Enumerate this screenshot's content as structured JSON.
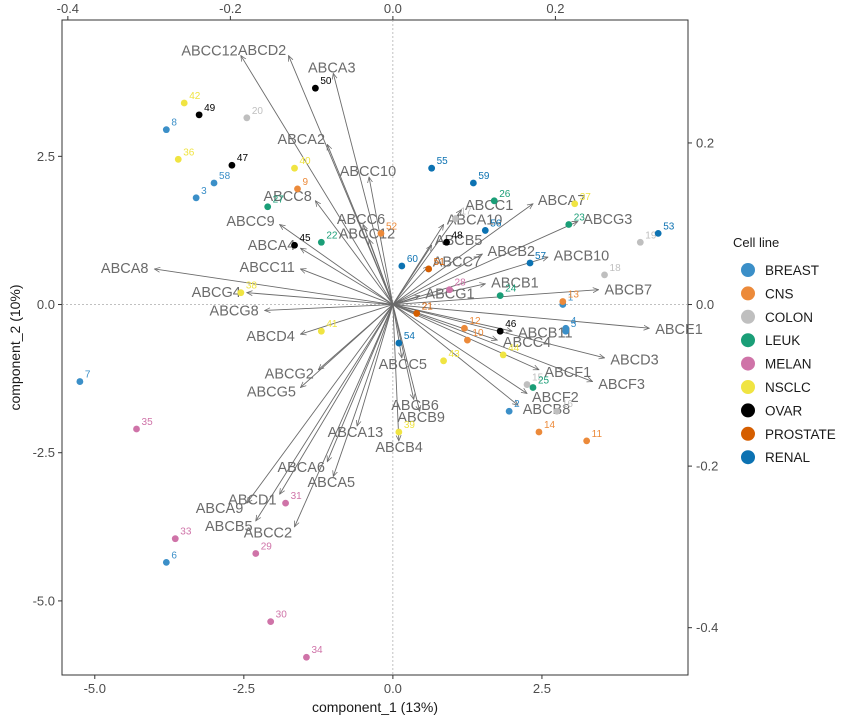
{
  "chart_data": {
    "type": "scatter",
    "subtype": "pca-biplot",
    "xlabel": "component_1   (13%)",
    "ylabel": "component_2   (10%)",
    "xlim": [
      -5.55,
      4.95
    ],
    "ylim": [
      -6.25,
      4.8
    ],
    "xticks": [
      -5.0,
      -2.5,
      0.0,
      2.5
    ],
    "xtick_labels": [
      "-5.0",
      "-2.5",
      "0.0",
      "2.5"
    ],
    "yticks": [
      -5.0,
      -2.5,
      0.0,
      2.5
    ],
    "ytick_labels": [
      "-5.0",
      "-2.5",
      "0.0",
      "2.5"
    ],
    "secondary_xticks": [
      -0.4,
      -0.2,
      0.0,
      0.2
    ],
    "secondary_xtick_labels": [
      "-0.4",
      "-0.2",
      "0.0",
      "0.2"
    ],
    "secondary_yticks": [
      -0.4,
      -0.2,
      0.0,
      0.2
    ],
    "secondary_ytick_labels": [
      "-0.4",
      "-0.2",
      "0.0",
      "0.2"
    ],
    "secondary_scale": 0.07337,
    "grid": false,
    "legend": {
      "title": "Cell line",
      "position": "right",
      "entries": [
        {
          "name": "BREAST",
          "color": "#3b8fc8"
        },
        {
          "name": "CNS",
          "color": "#ec8a3a"
        },
        {
          "name": "COLON",
          "color": "#bfbfbf"
        },
        {
          "name": "LEUK",
          "color": "#1a9e77"
        },
        {
          "name": "MELAN",
          "color": "#cf73a8"
        },
        {
          "name": "NSCLC",
          "color": "#f0e442"
        },
        {
          "name": "OVAR",
          "color": "#000000"
        },
        {
          "name": "PROSTATE",
          "color": "#d55e00"
        },
        {
          "name": "RENAL",
          "color": "#0c72b2"
        }
      ]
    },
    "arrow_color": "#6b6b6b",
    "loadings": [
      {
        "name": "ABCC12",
        "x": -2.55,
        "y": 4.2
      },
      {
        "name": "ABCD2",
        "x": -1.75,
        "y": 4.2
      },
      {
        "name": "ABCA3",
        "x": -1.0,
        "y": 3.9
      },
      {
        "name": "ABCA2",
        "x": -1.1,
        "y": 2.7
      },
      {
        "name": "ABCC10",
        "x": -0.4,
        "y": 2.15
      },
      {
        "name": "ABCC8",
        "x": -1.3,
        "y": 1.75
      },
      {
        "name": "ABCC9",
        "x": -1.9,
        "y": 1.35
      },
      {
        "name": "ABCC6",
        "x": -0.5,
        "y": 1.35
      },
      {
        "name": "ABCA4",
        "x": -1.55,
        "y": 0.95
      },
      {
        "name": "ABCC12",
        "x": -0.4,
        "y": 1.1
      },
      {
        "name": "ABCC11",
        "x": -1.55,
        "y": 0.6
      },
      {
        "name": "ABCA8",
        "x": -4.0,
        "y": 0.6
      },
      {
        "name": "ABCG4",
        "x": -2.45,
        "y": 0.2
      },
      {
        "name": "ABCG8",
        "x": -2.15,
        "y": -0.1
      },
      {
        "name": "ABCD4",
        "x": -1.55,
        "y": -0.5
      },
      {
        "name": "ABCC1",
        "x": 1.15,
        "y": 1.6
      },
      {
        "name": "ABCA7",
        "x": 2.35,
        "y": 1.7
      },
      {
        "name": "ABCA10",
        "x": 0.85,
        "y": 1.35
      },
      {
        "name": "ABCG3",
        "x": 3.1,
        "y": 1.4
      },
      {
        "name": "ABCB5",
        "x": 0.65,
        "y": 1.0
      },
      {
        "name": "ABCB2",
        "x": 1.5,
        "y": 0.85
      },
      {
        "name": "ABCC7",
        "x": 0.6,
        "y": 0.65
      },
      {
        "name": "ABCB10",
        "x": 2.6,
        "y": 0.8
      },
      {
        "name": "ABCB1",
        "x": 1.55,
        "y": 0.35
      },
      {
        "name": "ABCB7",
        "x": 3.45,
        "y": 0.25
      },
      {
        "name": "ABCG1",
        "x": 0.45,
        "y": 0.15
      },
      {
        "name": "ABCE1",
        "x": 4.3,
        "y": -0.4
      },
      {
        "name": "ABCB11",
        "x": 2.0,
        "y": -0.45
      },
      {
        "name": "ABCC4",
        "x": 1.75,
        "y": -0.6
      },
      {
        "name": "ABCD3",
        "x": 3.55,
        "y": -0.9
      },
      {
        "name": "ABCF1",
        "x": 2.45,
        "y": -1.1
      },
      {
        "name": "ABCF3",
        "x": 3.35,
        "y": -1.3
      },
      {
        "name": "ABCF2",
        "x": 2.25,
        "y": -1.5
      },
      {
        "name": "ABCB8",
        "x": 2.1,
        "y": -1.7
      },
      {
        "name": "ABCC5",
        "x": 0.15,
        "y": -0.9
      },
      {
        "name": "ABCG2",
        "x": -1.25,
        "y": -1.1
      },
      {
        "name": "ABCG5",
        "x": -1.55,
        "y": -1.4
      },
      {
        "name": "ABCB6",
        "x": 0.35,
        "y": -1.6
      },
      {
        "name": "ABCB9",
        "x": 0.45,
        "y": -1.8
      },
      {
        "name": "ABCA13",
        "x": -0.6,
        "y": -2.05
      },
      {
        "name": "ABCB4",
        "x": 0.1,
        "y": -2.3
      },
      {
        "name": "ABCA6",
        "x": -1.1,
        "y": -2.65
      },
      {
        "name": "ABCA5",
        "x": -1.0,
        "y": -2.9
      },
      {
        "name": "ABCA9",
        "x": -2.45,
        "y": -3.35
      },
      {
        "name": "ABCD1",
        "x": -1.9,
        "y": -3.2
      },
      {
        "name": "ABCB5",
        "x": -2.3,
        "y": -3.65
      },
      {
        "name": "ABCC2",
        "x": -1.65,
        "y": -3.75
      }
    ],
    "points": [
      {
        "label": "1",
        "group": "BREAST",
        "x": 2.85,
        "y": 0.0
      },
      {
        "label": "2",
        "group": "BREAST",
        "x": 1.95,
        "y": -1.8
      },
      {
        "label": "3",
        "group": "BREAST",
        "x": -3.3,
        "y": 1.8
      },
      {
        "label": "4",
        "group": "BREAST",
        "x": 2.9,
        "y": -0.4
      },
      {
        "label": "5",
        "group": "BREAST",
        "x": 2.9,
        "y": -0.45
      },
      {
        "label": "6",
        "group": "BREAST",
        "x": -3.8,
        "y": -4.35
      },
      {
        "label": "7",
        "group": "BREAST",
        "x": -5.25,
        "y": -1.3
      },
      {
        "label": "8",
        "group": "BREAST",
        "x": -3.8,
        "y": 2.95
      },
      {
        "label": "58",
        "group": "BREAST",
        "x": -3.0,
        "y": 2.05
      },
      {
        "label": "9",
        "group": "CNS",
        "x": -1.6,
        "y": 1.95
      },
      {
        "label": "10",
        "group": "CNS",
        "x": 1.25,
        "y": -0.6
      },
      {
        "label": "11",
        "group": "CNS",
        "x": 3.25,
        "y": -2.3
      },
      {
        "label": "12",
        "group": "CNS",
        "x": 1.2,
        "y": -0.4
      },
      {
        "label": "13",
        "group": "CNS",
        "x": 2.85,
        "y": 0.05
      },
      {
        "label": "14",
        "group": "CNS",
        "x": 2.45,
        "y": -2.15
      },
      {
        "label": "52",
        "group": "CNS",
        "x": -0.2,
        "y": 1.2
      },
      {
        "label": "15",
        "group": "COLON",
        "x": 2.25,
        "y": -1.35
      },
      {
        "label": "16",
        "group": "COLON",
        "x": 2.75,
        "y": -1.8
      },
      {
        "label": "17",
        "group": "COLON",
        "x": 1.05,
        "y": 1.45
      },
      {
        "label": "18",
        "group": "COLON",
        "x": 3.55,
        "y": 0.5
      },
      {
        "label": "19",
        "group": "COLON",
        "x": 4.15,
        "y": 1.05
      },
      {
        "label": "20",
        "group": "COLON",
        "x": -2.45,
        "y": 3.15
      },
      {
        "label": "22",
        "group": "LEUK",
        "x": -1.2,
        "y": 1.05
      },
      {
        "label": "23",
        "group": "LEUK",
        "x": 2.95,
        "y": 1.35
      },
      {
        "label": "24",
        "group": "LEUK",
        "x": 1.8,
        "y": 0.15
      },
      {
        "label": "25",
        "group": "LEUK",
        "x": 2.35,
        "y": -1.4
      },
      {
        "label": "26",
        "group": "LEUK",
        "x": 1.7,
        "y": 1.75
      },
      {
        "label": "27",
        "group": "LEUK",
        "x": -2.1,
        "y": 1.65
      },
      {
        "label": "28",
        "group": "MELAN",
        "x": 0.95,
        "y": 0.25
      },
      {
        "label": "29",
        "group": "MELAN",
        "x": -2.3,
        "y": -4.2
      },
      {
        "label": "30",
        "group": "MELAN",
        "x": -2.05,
        "y": -5.35
      },
      {
        "label": "31",
        "group": "MELAN",
        "x": -1.8,
        "y": -3.35
      },
      {
        "label": "33",
        "group": "MELAN",
        "x": -3.65,
        "y": -3.95
      },
      {
        "label": "34",
        "group": "MELAN",
        "x": -1.45,
        "y": -5.95
      },
      {
        "label": "35",
        "group": "MELAN",
        "x": -4.3,
        "y": -2.1
      },
      {
        "label": "37",
        "group": "NSCLC",
        "x": 3.05,
        "y": 1.7
      },
      {
        "label": "38",
        "group": "NSCLC",
        "x": -2.55,
        "y": 0.2
      },
      {
        "label": "36",
        "group": "NSCLC",
        "x": -3.6,
        "y": 2.45
      },
      {
        "label": "39",
        "group": "NSCLC",
        "x": 0.1,
        "y": -2.15
      },
      {
        "label": "40",
        "group": "NSCLC",
        "x": -1.65,
        "y": 2.3
      },
      {
        "label": "41",
        "group": "NSCLC",
        "x": -1.2,
        "y": -0.45
      },
      {
        "label": "42",
        "group": "NSCLC",
        "x": -3.5,
        "y": 3.4
      },
      {
        "label": "43",
        "group": "NSCLC",
        "x": 0.85,
        "y": -0.95
      },
      {
        "label": "44",
        "group": "NSCLC",
        "x": 1.85,
        "y": -0.85
      },
      {
        "label": "45",
        "group": "OVAR",
        "x": -1.65,
        "y": 1.0
      },
      {
        "label": "46",
        "group": "OVAR",
        "x": 1.8,
        "y": -0.45
      },
      {
        "label": "47",
        "group": "OVAR",
        "x": -2.7,
        "y": 2.35
      },
      {
        "label": "48",
        "group": "OVAR",
        "x": 0.9,
        "y": 1.05
      },
      {
        "label": "49",
        "group": "OVAR",
        "x": -3.25,
        "y": 3.2
      },
      {
        "label": "50",
        "group": "OVAR",
        "x": -1.3,
        "y": 3.65
      },
      {
        "label": "51",
        "group": "PROSTATE",
        "x": 0.6,
        "y": 0.6
      },
      {
        "label": "21",
        "group": "PROSTATE",
        "x": 0.4,
        "y": -0.15
      },
      {
        "label": "53",
        "group": "RENAL",
        "x": 4.45,
        "y": 1.2
      },
      {
        "label": "54",
        "group": "RENAL",
        "x": 0.1,
        "y": -0.65
      },
      {
        "label": "55",
        "group": "RENAL",
        "x": 0.65,
        "y": 2.3
      },
      {
        "label": "56",
        "group": "RENAL",
        "x": 1.55,
        "y": 1.25
      },
      {
        "label": "57",
        "group": "RENAL",
        "x": 2.3,
        "y": 0.7
      },
      {
        "label": "59",
        "group": "RENAL",
        "x": 1.35,
        "y": 2.05
      },
      {
        "label": "60",
        "group": "RENAL",
        "x": 0.15,
        "y": 0.65
      }
    ]
  }
}
